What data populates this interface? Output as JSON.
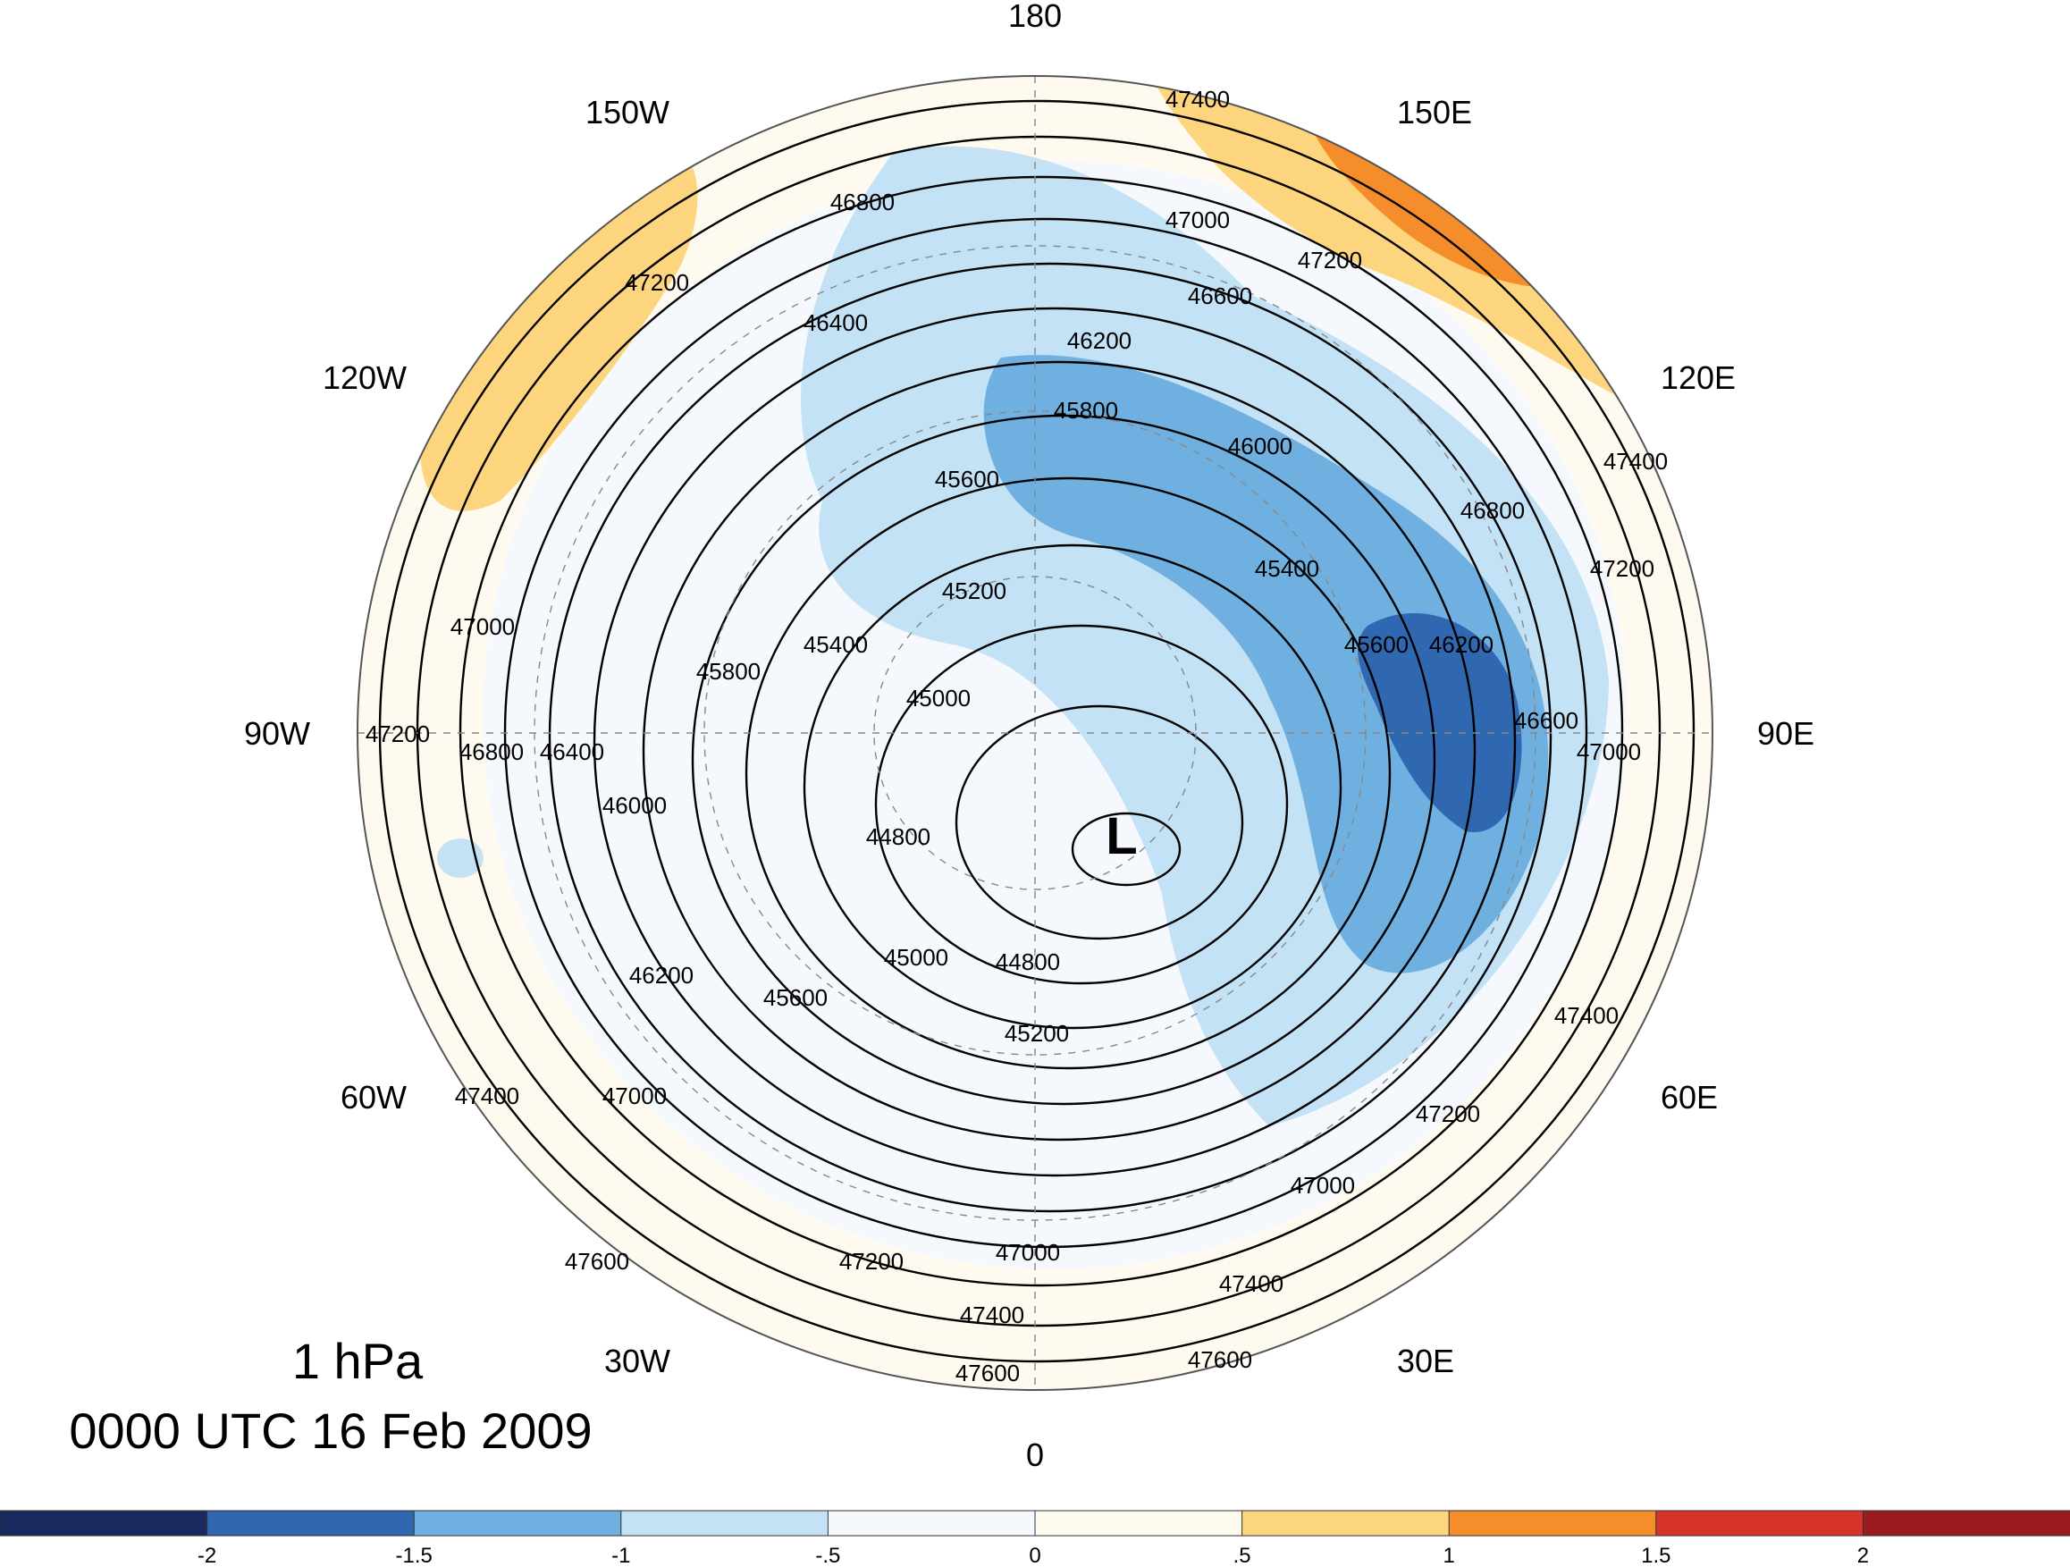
{
  "title": {
    "level": "1 hPa",
    "time": "0000 UTC 16 Feb 2009"
  },
  "longitude_labels": [
    "180",
    "150E",
    "120E",
    "90E",
    "60E",
    "30E",
    "0",
    "30W",
    "60W",
    "90W",
    "120W",
    "150W"
  ],
  "low_marker": "L",
  "contour_labels": [
    "44800",
    "45000",
    "45200",
    "45400",
    "45600",
    "45800",
    "46000",
    "46200",
    "46400",
    "46600",
    "46800",
    "47000",
    "47200",
    "47400",
    "47600"
  ],
  "colorbar": {
    "ticks": [
      "-2",
      "-1.5",
      "-1",
      "-.5",
      "0",
      ".5",
      "1",
      "1.5",
      "2"
    ],
    "colors": [
      "#1a2a5e",
      "#2f67b1",
      "#6fb0e0",
      "#c4e2f5",
      "#f5f9fd",
      "#fffaf0",
      "#fdd57e",
      "#f58d2a",
      "#d8332a",
      "#9b1b1e"
    ]
  },
  "anomaly_fields": [
    {
      "name": "deep-blue-core",
      "level": "-1.5"
    },
    {
      "name": "blue-band",
      "level": "-1"
    },
    {
      "name": "light-blue-region",
      "level": "-.5"
    },
    {
      "name": "orange-core",
      "level": "1"
    },
    {
      "name": "yellow-pacific",
      "level": ".5"
    },
    {
      "name": "yellow-alaska",
      "level": ".5"
    }
  ]
}
